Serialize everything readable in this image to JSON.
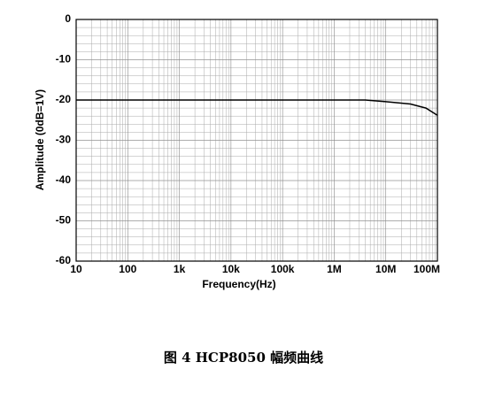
{
  "chart_data": {
    "type": "line",
    "caption": "图 4 HCP8050 幅频曲线",
    "xlabel": "Frequency(Hz)",
    "ylabel": "Amplitude (0dB=1V)",
    "x": [
      10,
      1000000,
      4000000,
      10000000,
      30000000,
      60000000,
      100000000
    ],
    "series": [
      {
        "color": "#000000",
        "values": [
          -20,
          -20,
          -20,
          -20.4,
          -21,
          -22,
          -23.8
        ]
      }
    ],
    "xscale": "log",
    "xlim": [
      10,
      100000000
    ],
    "xticks": [
      10,
      100,
      {
        "value": 1000,
        "label": "1k"
      },
      {
        "value": 10000,
        "label": "10k"
      },
      {
        "value": 100000,
        "label": "100k"
      },
      {
        "value": 1000000,
        "label": "1M"
      },
      {
        "value": 10000000,
        "label": "10M"
      },
      {
        "value": 100000000,
        "label": "100M"
      }
    ],
    "ylim": [
      -60,
      0
    ],
    "yticks": [
      -60,
      -50,
      -40,
      -30,
      -20,
      -10,
      0
    ],
    "grid": true,
    "minor_grid": true
  }
}
